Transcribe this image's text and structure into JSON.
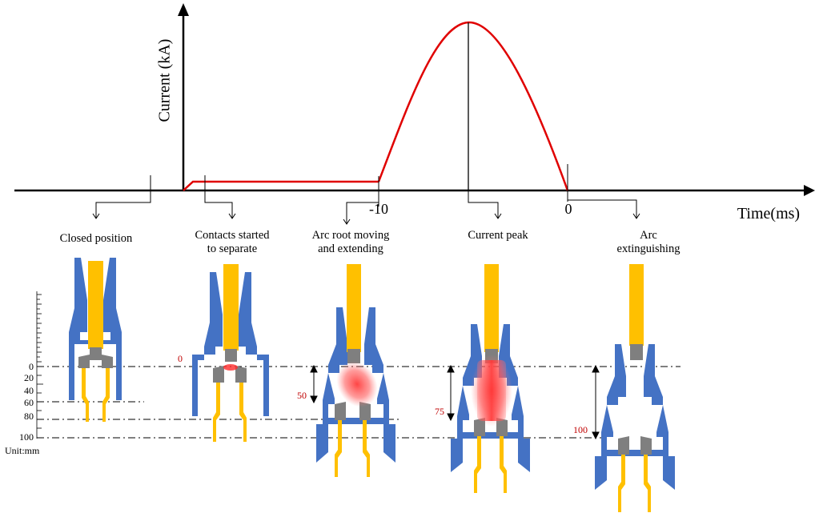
{
  "axes": {
    "y_label": "Current (kA)",
    "x_label": "Time(ms)",
    "tick_labels": [
      "-10",
      "0"
    ]
  },
  "stages": [
    {
      "label_line1": "Closed position",
      "label_line2": ""
    },
    {
      "label_line1": "Contacts started",
      "label_line2": "to separate"
    },
    {
      "label_line1": "Arc root moving",
      "label_line2": "and extending"
    },
    {
      "label_line1": "Current peak",
      "label_line2": ""
    },
    {
      "label_line1": "Arc",
      "label_line2": "extinguishing"
    }
  ],
  "scale": {
    "ticks": [
      "0",
      "20",
      "40",
      "60",
      "80",
      "100"
    ],
    "unit": "Unit:mm"
  },
  "displacements": [
    "0",
    "50",
    "75",
    "100"
  ],
  "colors": {
    "current_curve": "#e00000",
    "nozzle": "#4472c4",
    "contact": "#ffc000",
    "contact_tip": "#7f7f7f",
    "arc": "#ff4d4d",
    "displacement_text": "#c00000"
  },
  "icons": [
    "axis-arrow",
    "stage-pointer-arrow",
    "double-arrow"
  ]
}
